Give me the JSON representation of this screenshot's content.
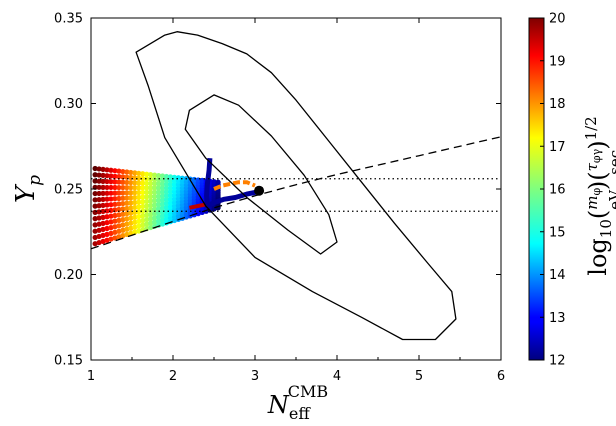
{
  "chart_data": {
    "type": "scatter",
    "title": "",
    "xlabel": {
      "main": "N",
      "sub": "eff",
      "sup": "CMB"
    },
    "ylabel": {
      "main": "Y",
      "sub": "p"
    },
    "xlim": [
      1,
      6
    ],
    "ylim": [
      0.15,
      0.35
    ],
    "xticks": [
      "1",
      "2",
      "3",
      "4",
      "5",
      "6"
    ],
    "yticks": [
      "0.15",
      "0.20",
      "0.25",
      "0.30",
      "0.35"
    ],
    "grid": false,
    "colorbar": {
      "colormap": "jet",
      "range": [
        12,
        20
      ],
      "ticks": [
        "12",
        "13",
        "14",
        "15",
        "16",
        "17",
        "18",
        "19",
        "20"
      ],
      "label": {
        "prefix": "log",
        "base": "10",
        "m_num": "m",
        "m_num_sub": "φ",
        "m_den": "eV",
        "t_num": "τ",
        "t_num_sub": "φγ",
        "t_den": "sec",
        "power": "1/2"
      }
    },
    "contours": [
      {
        "name": "inner",
        "x": [
          2.5,
          2.2,
          2.15,
          2.4,
          2.9,
          3.4,
          3.8,
          4.0,
          3.9,
          3.6,
          3.2,
          2.8,
          2.5
        ],
        "y": [
          0.305,
          0.296,
          0.285,
          0.268,
          0.245,
          0.226,
          0.212,
          0.219,
          0.235,
          0.258,
          0.281,
          0.299,
          0.305
        ]
      },
      {
        "name": "outer",
        "x": [
          1.9,
          1.55,
          1.7,
          1.9,
          2.4,
          3.0,
          3.7,
          4.3,
          4.8,
          5.2,
          5.45,
          5.4,
          5.1,
          4.7,
          4.3,
          3.9,
          3.5,
          3.2,
          2.9,
          2.6,
          2.3,
          2.05,
          1.9
        ],
        "y": [
          0.34,
          0.33,
          0.31,
          0.28,
          0.24,
          0.21,
          0.19,
          0.175,
          0.162,
          0.162,
          0.174,
          0.19,
          0.207,
          0.23,
          0.254,
          0.278,
          0.302,
          0.318,
          0.329,
          0.335,
          0.34,
          0.342,
          0.34
        ]
      }
    ],
    "dotted_lines": [
      0.256,
      0.237
    ],
    "dashed_curve": {
      "x": [
        1.0,
        1.5,
        2.0,
        2.5,
        3.0,
        3.5,
        4.0,
        4.5,
        5.0,
        5.5,
        6.0
      ],
      "y": [
        0.215,
        0.223,
        0.231,
        0.239,
        0.246,
        0.2525,
        0.2585,
        0.264,
        0.2695,
        0.275,
        0.2805
      ]
    },
    "endpoint": {
      "x": 3.05,
      "y": 0.249
    },
    "scatter_band": {
      "x_start": 1.05,
      "x_end": 2.55,
      "y_top": 0.262,
      "y_bottom_left": 0.218,
      "steps": 32,
      "rows": 13,
      "c_min": 12,
      "c_max": 20
    },
    "blue_track": {
      "x": [
        2.45,
        2.44,
        2.42,
        2.41,
        2.42,
        2.5,
        2.62,
        2.76,
        2.9,
        3.0,
        3.05
      ],
      "y": [
        0.268,
        0.261,
        0.253,
        0.246,
        0.24,
        0.242,
        0.244,
        0.245,
        0.247,
        0.248,
        0.249
      ],
      "value": 12.2
    },
    "orange_segment": {
      "x": [
        2.5,
        2.6,
        2.7,
        2.8,
        2.9,
        3.0
      ],
      "y": [
        0.25,
        0.252,
        0.253,
        0.254,
        0.254,
        0.252
      ],
      "value": 18.0
    },
    "red_segment": {
      "x": [
        2.2,
        2.3,
        2.4
      ],
      "y": [
        0.239,
        0.24,
        0.241
      ],
      "value": 19.5
    }
  }
}
